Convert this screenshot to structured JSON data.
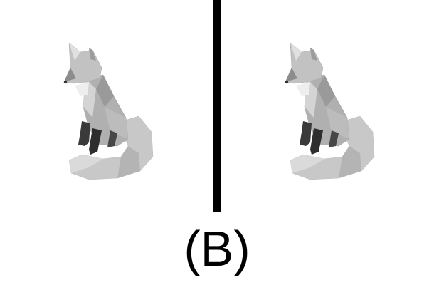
{
  "caption": "(B)",
  "panels": [
    {
      "subject": "fox-model-icon"
    },
    {
      "subject": "fox-model-icon"
    }
  ],
  "colors": {
    "background": "#ffffff",
    "divider": "#000000",
    "fox_light": "#d0d0d0",
    "fox_mid": "#a8a8a8",
    "fox_dark": "#3a3a3a"
  }
}
